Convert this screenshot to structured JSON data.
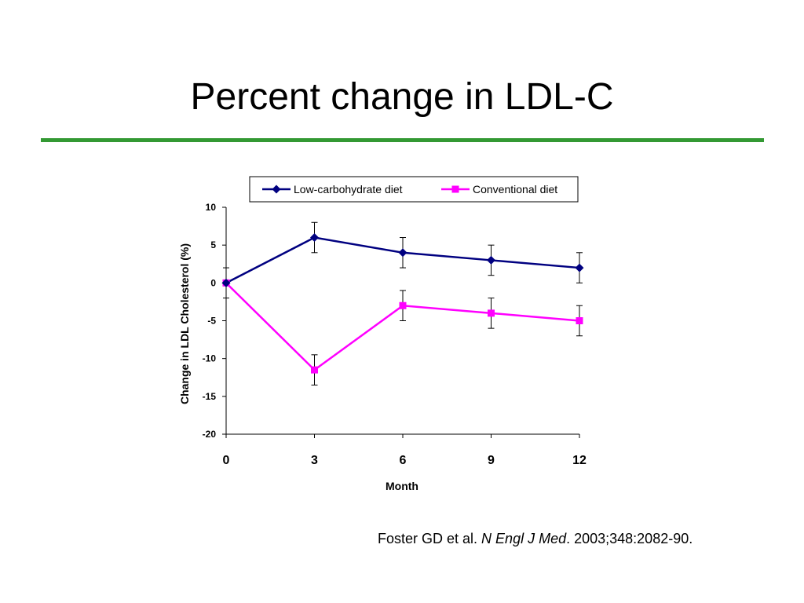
{
  "slide": {
    "title": "Percent change in LDL-C",
    "citation": {
      "authors": "Foster GD et al. ",
      "journal": "N Engl J Med",
      "details": ". 2003;348:2082-90."
    }
  },
  "chart_data": {
    "type": "line",
    "title": "",
    "xlabel": "Month",
    "ylabel": "Change in LDL Cholesterol (%)",
    "x": [
      0,
      3,
      6,
      9,
      12
    ],
    "xticks": [
      "0",
      "3",
      "6",
      "9",
      "12"
    ],
    "yticks": [
      "10",
      "5",
      "0",
      "-5",
      "-10",
      "-15",
      "-20"
    ],
    "xlim": [
      0,
      12
    ],
    "ylim": [
      -20,
      10
    ],
    "grid": false,
    "legend": "top",
    "series": [
      {
        "name": "Low-carbohydrate diet",
        "color": "#000080",
        "marker": "diamond",
        "values": [
          0,
          6,
          4,
          3,
          2
        ],
        "error": [
          2,
          2,
          2,
          2,
          2
        ]
      },
      {
        "name": "Conventional diet",
        "color": "#FF00FF",
        "marker": "square",
        "values": [
          0,
          -11.5,
          -3,
          -4,
          -5
        ],
        "error": [
          0,
          2,
          2,
          2,
          2
        ]
      }
    ]
  }
}
